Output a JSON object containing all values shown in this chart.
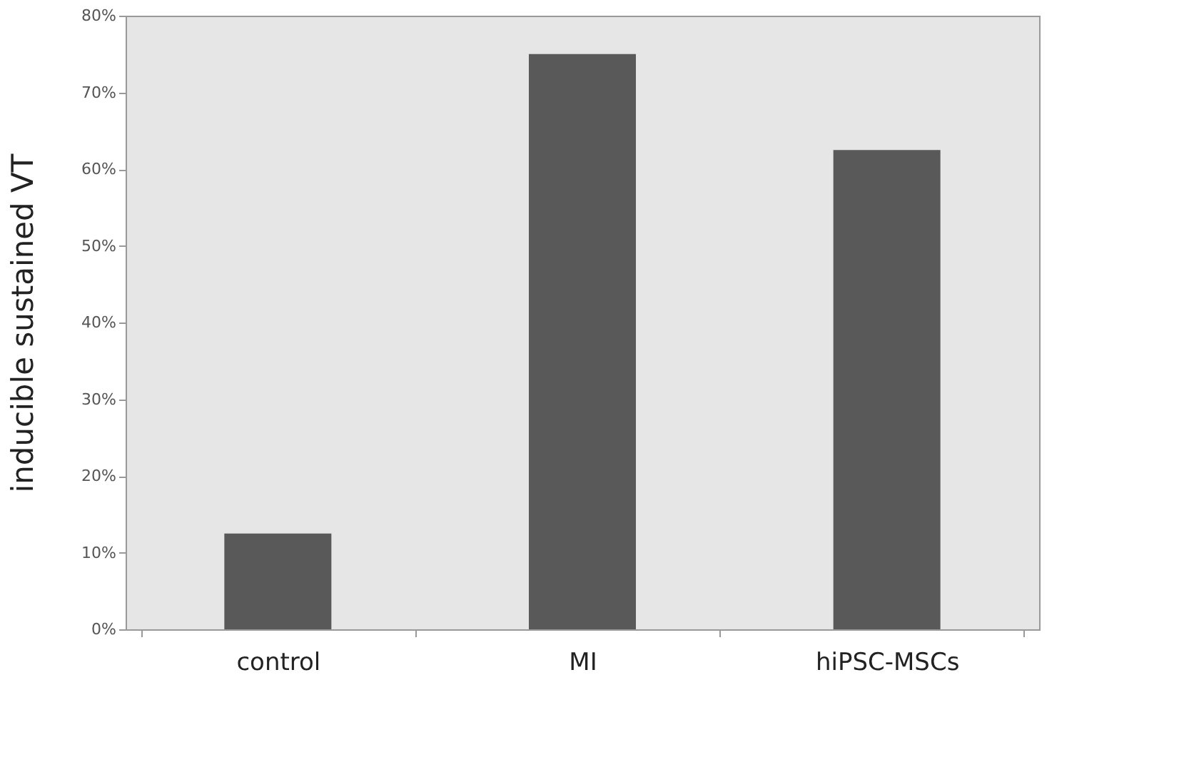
{
  "chart_data": {
    "type": "bar",
    "ylabel": "inducible sustained VT",
    "categories": [
      "control",
      "MI",
      "hiPSC-MSCs"
    ],
    "values": [
      12.5,
      75,
      62.5
    ],
    "color": "#595959",
    "ylim": [
      0,
      80
    ],
    "yticks": [
      {
        "value": 0,
        "label": "0%"
      },
      {
        "value": 10,
        "label": "10%"
      },
      {
        "value": 20,
        "label": "20%"
      },
      {
        "value": 30,
        "label": "30%"
      },
      {
        "value": 40,
        "label": "40%"
      },
      {
        "value": 50,
        "label": "50%"
      },
      {
        "value": 60,
        "label": "60%"
      },
      {
        "value": 70,
        "label": "70%"
      },
      {
        "value": 80,
        "label": "80%"
      }
    ],
    "grid": false
  }
}
